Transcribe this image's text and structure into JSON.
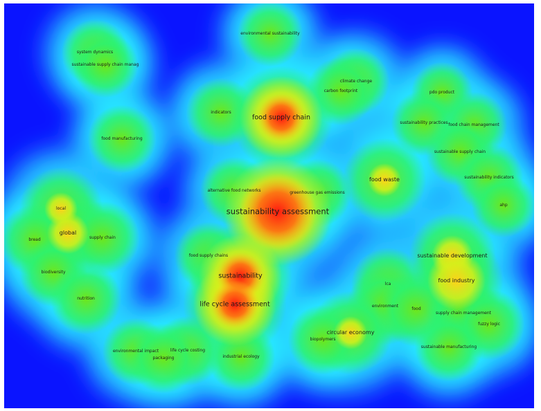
{
  "colors": {
    "background": "#0a14ff",
    "scale": [
      "#0a14ff",
      "#1e6cff",
      "#28f0ff",
      "#2ef26c",
      "#6fe61a",
      "#d7ef1a",
      "#ffd21a",
      "#ff6a12",
      "#ff1a10"
    ],
    "label": "#1a1a1a"
  },
  "keywords": [
    {
      "label": "environmental sustainability",
      "weight": 0.28,
      "importance": 1
    },
    {
      "label": "system dynamics",
      "weight": 0.3,
      "importance": 1
    },
    {
      "label": "sustainable supply chain manag",
      "weight": 0.28,
      "importance": 1
    },
    {
      "label": "climate change",
      "weight": 0.3,
      "importance": 1
    },
    {
      "label": "carbon footprint",
      "weight": 0.32,
      "importance": 1
    },
    {
      "label": "pdo product",
      "weight": 0.22,
      "importance": 1
    },
    {
      "label": "indicators",
      "weight": 0.34,
      "importance": 1
    },
    {
      "label": "food supply chain",
      "weight": 0.85,
      "importance": 3
    },
    {
      "label": "sustainability practices",
      "weight": 0.28,
      "importance": 1
    },
    {
      "label": "food chain management",
      "weight": 0.3,
      "importance": 1
    },
    {
      "label": "food manufacturing",
      "weight": 0.32,
      "importance": 1
    },
    {
      "label": "sustainable supply chain",
      "weight": 0.32,
      "importance": 1
    },
    {
      "label": "food waste",
      "weight": 0.55,
      "importance": 2
    },
    {
      "label": "sustainability indicators",
      "weight": 0.32,
      "importance": 1
    },
    {
      "label": "alternative food networks",
      "weight": 0.32,
      "importance": 1
    },
    {
      "label": "greenhouse gas emissions",
      "weight": 0.32,
      "importance": 1
    },
    {
      "label": "ahp",
      "weight": 0.26,
      "importance": 1
    },
    {
      "label": "local",
      "weight": 0.55,
      "importance": 1
    },
    {
      "label": "sustainability assessment",
      "weight": 1.0,
      "importance": 4
    },
    {
      "label": "global",
      "weight": 0.6,
      "importance": 2
    },
    {
      "label": "supply chain",
      "weight": 0.4,
      "importance": 1
    },
    {
      "label": "bread",
      "weight": 0.36,
      "importance": 1
    },
    {
      "label": "food supply chains",
      "weight": 0.32,
      "importance": 1
    },
    {
      "label": "sustainable development",
      "weight": 0.6,
      "importance": 2
    },
    {
      "label": "biodiversity",
      "weight": 0.32,
      "importance": 1
    },
    {
      "label": "sustainability",
      "weight": 0.85,
      "importance": 3
    },
    {
      "label": "food industry",
      "weight": 0.7,
      "importance": 2
    },
    {
      "label": "lca",
      "weight": 0.4,
      "importance": 1
    },
    {
      "label": "nutrition",
      "weight": 0.36,
      "importance": 1
    },
    {
      "label": "life cycle assessment",
      "weight": 0.85,
      "importance": 3
    },
    {
      "label": "environment",
      "weight": 0.45,
      "importance": 1
    },
    {
      "label": "food",
      "weight": 0.42,
      "importance": 1
    },
    {
      "label": "supply chain management",
      "weight": 0.42,
      "importance": 1
    },
    {
      "label": "fuzzy logic",
      "weight": 0.36,
      "importance": 1
    },
    {
      "label": "circular economy",
      "weight": 0.55,
      "importance": 2
    },
    {
      "label": "biopolymers",
      "weight": 0.34,
      "importance": 1
    },
    {
      "label": "environmental impact",
      "weight": 0.3,
      "importance": 1
    },
    {
      "label": "life cycle costing",
      "weight": 0.34,
      "importance": 1
    },
    {
      "label": "sustainable manufacturing",
      "weight": 0.32,
      "importance": 1
    },
    {
      "label": "packaging",
      "weight": 0.34,
      "importance": 1
    },
    {
      "label": "industrial ecology",
      "weight": 0.32,
      "importance": 1
    }
  ]
}
